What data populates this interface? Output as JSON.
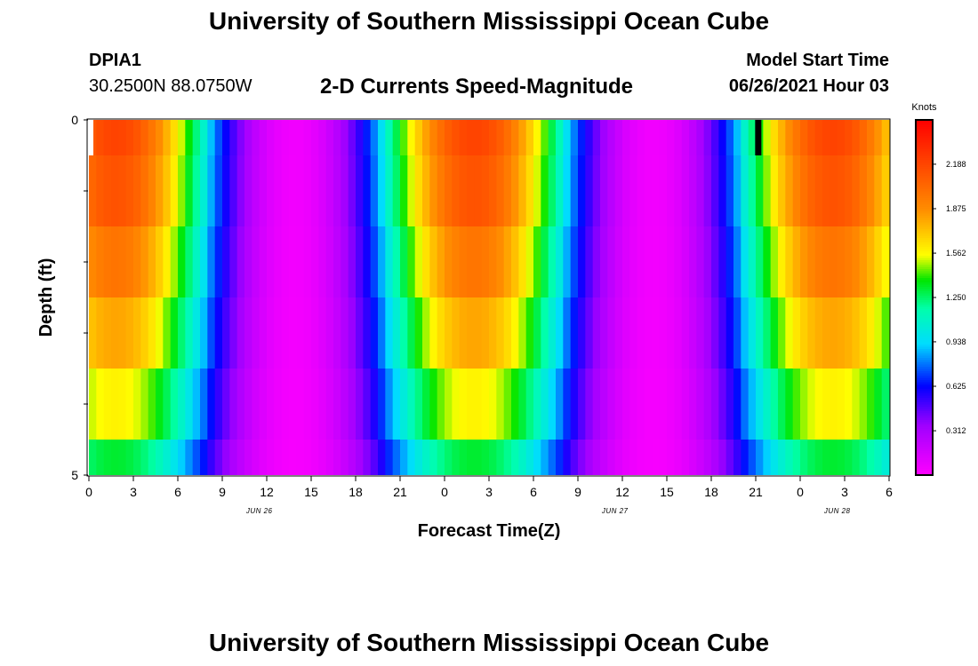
{
  "header": {
    "title": "University of Southern Mississippi Ocean Cube",
    "station_id": "DPIA1",
    "location": "30.2500N  88.0750W",
    "subtitle": "2-D Currents Speed-Magnitude",
    "start_label": "Model Start Time",
    "start_value": "06/26/2021 Hour 03"
  },
  "footer": {
    "title": "University of Southern Mississippi Ocean Cube"
  },
  "chart_data": {
    "type": "heatmap",
    "title": "2-D Currents Speed-Magnitude",
    "xlabel": "Forecast Time(Z)",
    "ylabel": "Depth (ft)",
    "x_start_hour": 0,
    "x_end_hour": 54,
    "x_step_hours": 0.5,
    "x_tick_labels": [
      "0",
      "3",
      "6",
      "9",
      "12",
      "15",
      "18",
      "21",
      "0",
      "3",
      "6",
      "9",
      "12",
      "15",
      "18",
      "21",
      "0",
      "3",
      "6"
    ],
    "x_tick_hours": [
      0,
      3,
      6,
      9,
      12,
      15,
      18,
      21,
      24,
      27,
      30,
      33,
      36,
      39,
      42,
      45,
      48,
      51,
      54
    ],
    "date_labels": [
      {
        "text": "JUN 26",
        "hour": 11.5
      },
      {
        "text": "JUN 27",
        "hour": 35.5
      },
      {
        "text": "JUN 28",
        "hour": 50.5
      }
    ],
    "y_tick_labels": [
      "0",
      "5"
    ],
    "y_ticks_ft": [
      0,
      1,
      2,
      3,
      4,
      5
    ],
    "ylim": [
      0,
      5
    ],
    "depth_bands_ft": [
      [
        0,
        0.5
      ],
      [
        0.5,
        1.5
      ],
      [
        1.5,
        2.5
      ],
      [
        2.5,
        3.5
      ],
      [
        3.5,
        4.5
      ],
      [
        4.5,
        5
      ]
    ],
    "colorbar": {
      "unit": "Knots",
      "min": 0,
      "max": 2.5,
      "tick_values": [
        0.312,
        0.625,
        0.938,
        1.25,
        1.562,
        1.875,
        2.188
      ],
      "tick_labels": [
        "0.312",
        "0.625",
        "0.938",
        "1.250",
        "1.562",
        "1.875",
        "2.188"
      ]
    },
    "speed_profile": {
      "period_hours": 24.2,
      "max_hour": 1.8,
      "peak_knots": 2.2,
      "mean_knots": 1.05,
      "trough_knots": 0.05,
      "depth_scale": [
        1.0,
        0.97,
        0.9,
        0.82,
        0.72,
        0.6
      ],
      "spike_hour": 45.2,
      "spike_top_band": 0
    }
  }
}
